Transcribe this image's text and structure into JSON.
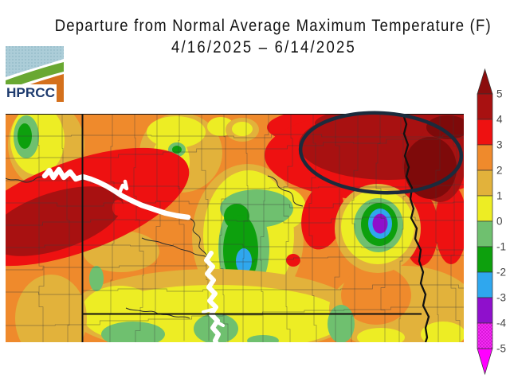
{
  "header": {
    "title": "Departure from Normal Average Maximum Temperature (F)",
    "date_range": "4/16/2025 – 6/14/2025"
  },
  "logo": {
    "text": "HPRCC",
    "sky_color": "#ACCDD8",
    "swoosh_green": "#69A832",
    "swoosh_orange": "#D4701C",
    "text_color": "#1E3B6E"
  },
  "colorbar": {
    "tick_labels": [
      "5",
      "4",
      "3",
      "2",
      "1",
      "0",
      "-1",
      "-2",
      "-3",
      "-4",
      "-5"
    ],
    "segment_colors_top_to_bottom": [
      "#A81111",
      "#EE1111",
      "#EF8A2C",
      "#E2B23B",
      "#EDED24",
      "#6FC06F",
      "#0DA00D",
      "#2FA7EE",
      "#8F10CC",
      "#F32BF3"
    ],
    "above_max_color": "#8B0D0D",
    "below_min_color": "#FF00FF",
    "tick_color": "#444444"
  },
  "map": {
    "palette": {
      "orange": "#EF8A2C",
      "gold": "#E2B23B",
      "yellow": "#EDED24",
      "light_green": "#6FC06F",
      "green": "#0DA00D",
      "blue": "#2FA7EE",
      "purple": "#8F10CC",
      "red": "#EE1111",
      "dark_red": "#A81111",
      "darkest_red": "#7E0A0A",
      "water": "#FFFFFF"
    },
    "annotation_ellipse_color": "#1B2B3C",
    "border_color": "#111111"
  }
}
